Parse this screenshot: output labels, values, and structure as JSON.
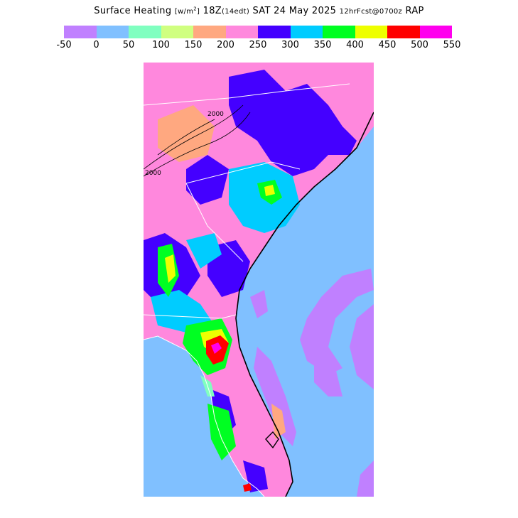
{
  "header": {
    "title_main": "Surface Heating",
    "units": "[w/m",
    "units_sup": "2",
    "units_close": "]",
    "valid_time": "18Z",
    "local_time": "(14edt)",
    "date": "SAT 24 May 2025",
    "forecast": "12hrFcst@0700z",
    "model": "RAP"
  },
  "colorbar": {
    "colors": [
      "#c080ff",
      "#80c0ff",
      "#80ffc0",
      "#d0ff80",
      "#ffa880",
      "#ff88dd",
      "#4400ff",
      "#00ccff",
      "#00ff22",
      "#eeff00",
      "#ff0000",
      "#ff00ee"
    ],
    "ticks": [
      "-50",
      "0",
      "50",
      "100",
      "150",
      "200",
      "250",
      "300",
      "350",
      "400",
      "450",
      "500",
      "550"
    ]
  },
  "map": {
    "region": "Southeast US",
    "ocean_color": "#80c0ff",
    "contour_labels": [
      "2000",
      "2000"
    ]
  }
}
